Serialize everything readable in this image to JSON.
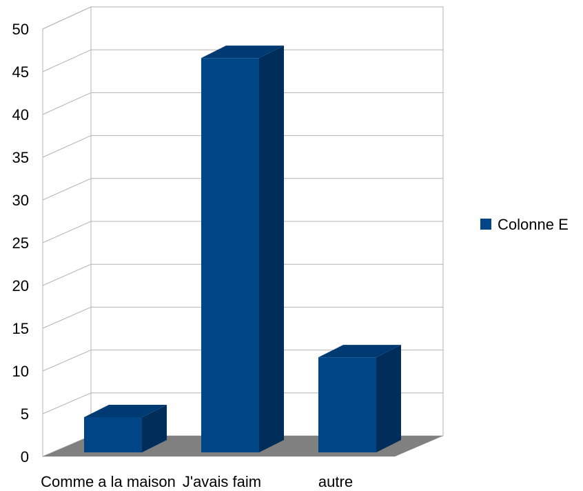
{
  "chart_data": {
    "type": "bar",
    "categories": [
      "Comme a la maison",
      "J'avais faim",
      "autre"
    ],
    "series": [
      {
        "name": "Colonne E",
        "values": [
          4.6,
          46.6,
          11.6
        ],
        "color": "#004586"
      }
    ],
    "ylim": [
      0,
      50
    ],
    "yticks": [
      "0",
      "5",
      "10",
      "15",
      "20",
      "25",
      "30",
      "35",
      "40",
      "45",
      "50"
    ],
    "grid": true,
    "legend": "right",
    "style": "3d",
    "colors": {
      "bar_front": "#004586",
      "bar_side": "#002d5a",
      "bar_top": "#003a72",
      "floor": "#808080",
      "grid": "#b3b3b3"
    }
  }
}
